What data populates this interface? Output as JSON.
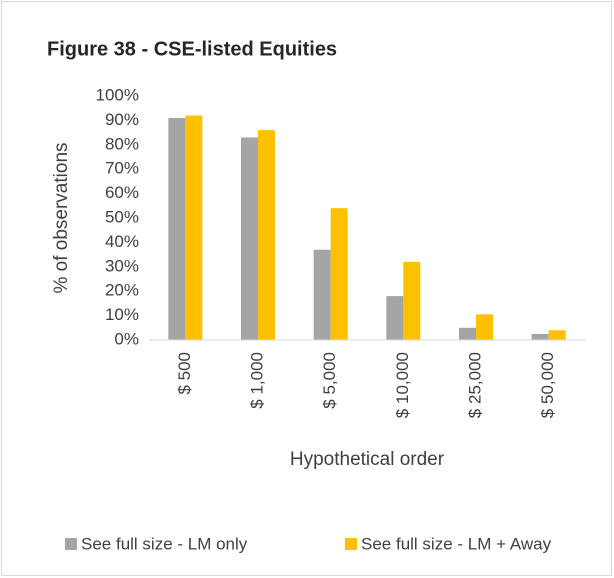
{
  "chart_data": {
    "type": "bar",
    "title": "Figure 38 - CSE-listed Equities",
    "y_label": "% of observations",
    "x_label": "Hypothetical order",
    "categories": [
      "$ 500",
      "$ 1,000",
      "$ 5,000",
      "$ 10,000",
      "$ 25,000",
      "$ 50,000"
    ],
    "series": [
      {
        "name": "See full size - LM only",
        "color": "#a5a5a5",
        "values": [
          91,
          83,
          37,
          18,
          5,
          2.5
        ]
      },
      {
        "name": "See full size - LM + Away",
        "color": "#ffc000",
        "values": [
          92,
          86,
          54,
          32,
          10.5,
          4
        ]
      }
    ],
    "ylim": [
      0,
      100
    ],
    "yticks": [
      {
        "value": 0,
        "label": "0%"
      },
      {
        "value": 10,
        "label": "10%"
      },
      {
        "value": 20,
        "label": "20%"
      },
      {
        "value": 30,
        "label": "30%"
      },
      {
        "value": 40,
        "label": "40%"
      },
      {
        "value": 50,
        "label": "50%"
      },
      {
        "value": 60,
        "label": "60%"
      },
      {
        "value": 70,
        "label": "70%"
      },
      {
        "value": 80,
        "label": "80%"
      },
      {
        "value": 90,
        "label": "90%"
      },
      {
        "value": 100,
        "label": "100%"
      }
    ],
    "grid": false,
    "legend": "bottom"
  }
}
